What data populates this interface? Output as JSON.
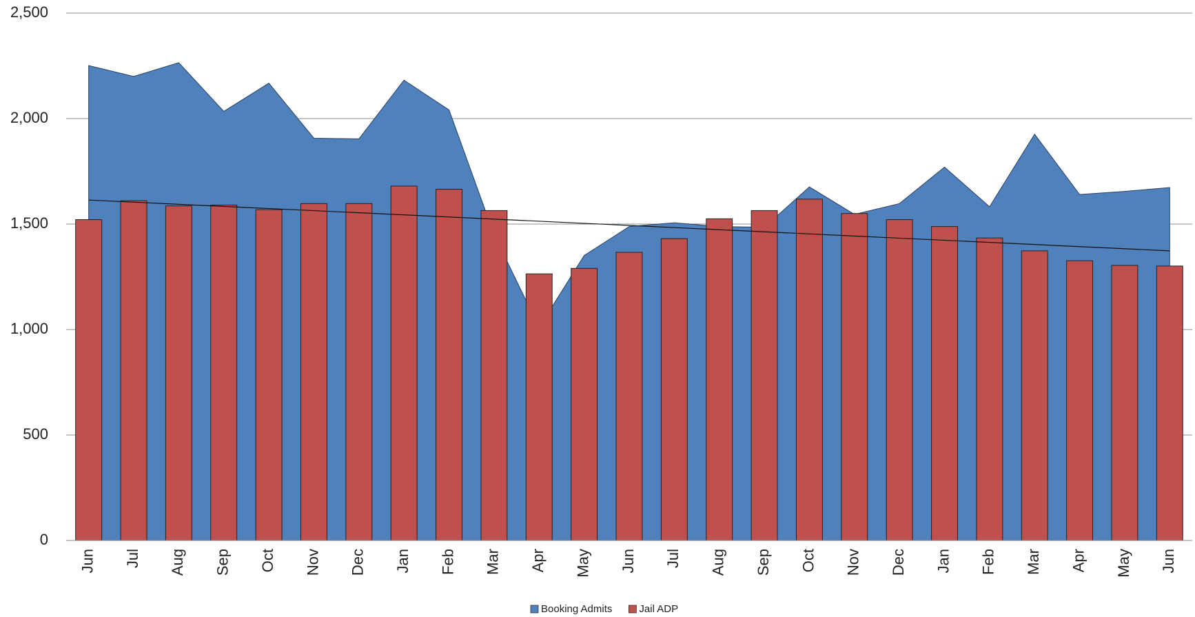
{
  "chart_data": {
    "type": "combo",
    "categories": [
      "Jun",
      "Jul",
      "Aug",
      "Sep",
      "Oct",
      "Nov",
      "Dec",
      "Jan",
      "Feb",
      "Mar",
      "Apr",
      "May",
      "Jun",
      "Jul",
      "Aug",
      "Sep",
      "Oct",
      "Nov",
      "Dec",
      "Jan",
      "Feb",
      "Mar",
      "Apr",
      "May",
      "Jun"
    ],
    "series": [
      {
        "name": "Booking Admits",
        "type": "area",
        "color": "#4f81bd",
        "values": [
          2251,
          2200,
          2265,
          2034,
          2168,
          1907,
          1904,
          2182,
          2041,
          1450,
          1010,
          1351,
          1488,
          1506,
          1488,
          1485,
          1676,
          1546,
          1597,
          1770,
          1582,
          1926,
          1640,
          1655,
          1673
        ]
      },
      {
        "name": "Jail ADP",
        "type": "bar",
        "color": "#c0504d",
        "values": [
          1521,
          1611,
          1586,
          1590,
          1568,
          1597,
          1597,
          1680,
          1665,
          1564,
          1264,
          1290,
          1366,
          1431,
          1525,
          1564,
          1618,
          1550,
          1521,
          1488,
          1434,
          1373,
          1326,
          1304,
          1301
        ]
      }
    ],
    "trendline": true,
    "ylim": [
      0,
      2500
    ],
    "yticks": [
      0,
      500,
      {
        "value": 1000,
        "label": "1,000"
      },
      {
        "value": 1500,
        "label": "1,500"
      },
      {
        "value": 2000,
        "label": "2,000"
      },
      {
        "value": 2500,
        "label": "2,500"
      }
    ],
    "grid": true,
    "legend": "bottom"
  }
}
